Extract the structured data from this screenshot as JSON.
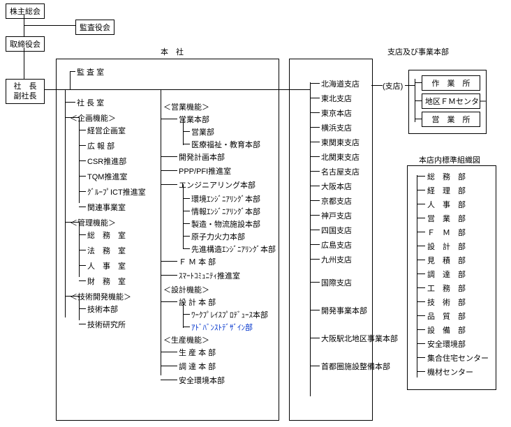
{
  "colors": {
    "text": "#000000",
    "link": "#0033cc",
    "border": "#000000",
    "bg": "#ffffff"
  },
  "boxes": {
    "shareholders": "株主総会",
    "auditors": "監査役会",
    "directors": "取締役会",
    "president": "社　長",
    "vp": "副社長"
  },
  "headquarters": {
    "title": "本　社",
    "col1": {
      "audit": "監 査 室",
      "pres_office": "社 長 室",
      "plan_h": "＜企画機能＞",
      "plan": [
        "経営企画室",
        "広 報 部",
        "CSR推進部",
        "TQM推進室",
        "ｸﾞﾙｰﾌﾟICT推進室",
        "関連事業室"
      ],
      "admin_h": "＜管理機能＞",
      "admin": [
        "総　務　室",
        "法　務　室",
        "人　事　室",
        "財　務　室"
      ],
      "tech_h": "＜技術開発機能＞",
      "tech": [
        "技術本部",
        "技術研究所"
      ]
    },
    "col2": {
      "sales_h": "＜営業機能＞",
      "sales_hq": "営業本部",
      "sales_sub": [
        "営業部",
        "医療福祉・教育本部"
      ],
      "sales": [
        "開発計画本部",
        "PPP/PFI推進室",
        "エンジニアリング本部"
      ],
      "eng_sub": [
        "環境ｴﾝｼﾞﾆｱﾘﾝｸﾞ本部",
        "情報ｴﾝｼﾞﾆｱﾘﾝｸﾞ本部",
        "製造・物流施設本部",
        "原子力火力本部",
        "先進構造ｴﾝｼﾞﾆｱﾘﾝｸﾞ本部"
      ],
      "sales2": [
        "Ｆ Ｍ 本 部",
        "ｽﾏｰﾄｺﾐｭﾆﾃｨ推進室"
      ],
      "design_h": "＜設計機能＞",
      "design_hq": "設 計 本 部",
      "design_sub": [
        "ﾜｰｸﾌﾟﾚｲｽﾌﾟﾛﾃﾞｭｰｽ本部",
        "ｱﾄﾞﾊﾞﾝｽﾄﾃﾞｻﾞｲﾝ部"
      ],
      "prod_h": "＜生産機能＞",
      "prod": [
        "生 産 本 部",
        "調 達 本 部",
        "安全環境本部"
      ]
    }
  },
  "branches": {
    "title": "支店及び事業本部",
    "list": [
      "北海道支店",
      "東北支店",
      "東京本店",
      "横浜支店",
      "東関東支店",
      "北関東支店",
      "名古屋支店",
      "大阪本店",
      "京都支店",
      "神戸支店",
      "四国支店",
      "広島支店",
      "九州支店"
    ],
    "intl": "国際支店",
    "biz": [
      "開発事業本部",
      "大阪駅北地区事業本部",
      "首都圏施設整備本部"
    ]
  },
  "branch_sub": {
    "title": "(支店)",
    "items": [
      "作　業　所",
      "地区ＦＭセンター",
      "営　業　所"
    ]
  },
  "std_org": {
    "title": "本店内標準組織図",
    "items": [
      "総　務　部",
      "経　理　部",
      "人　事　部",
      "営　業　部",
      "Ｆ　Ｍ　部",
      "設　計　部",
      "見　積　部",
      "調　達　部",
      "工　務　部",
      "技　術　部",
      "品　質　部",
      "設　備　部",
      "安全環境部",
      "集合住宅センター",
      "機材センター"
    ]
  }
}
